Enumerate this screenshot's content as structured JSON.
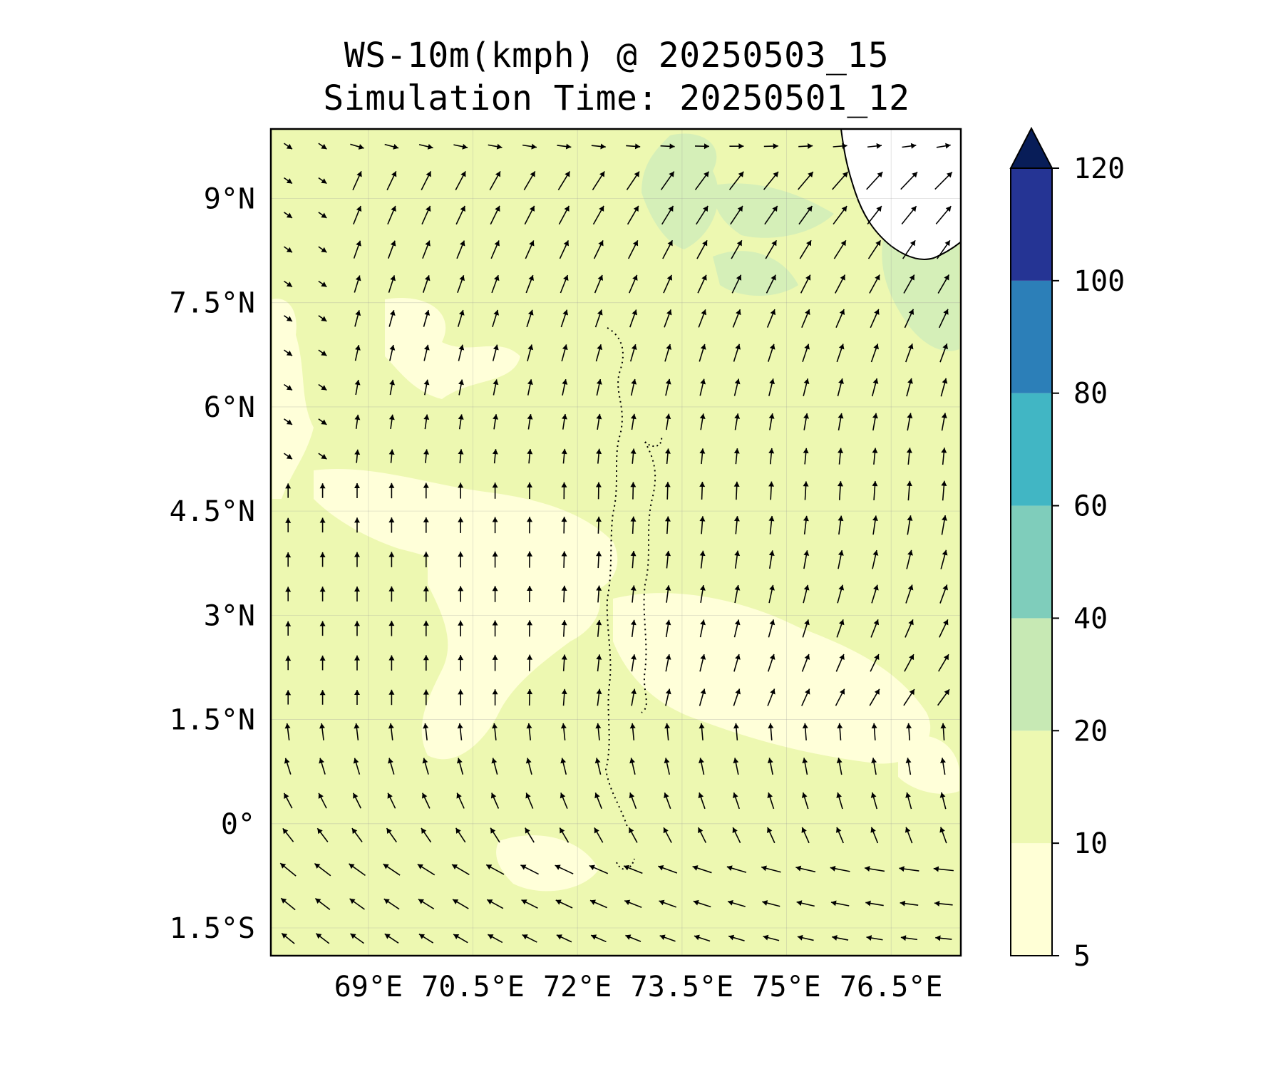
{
  "title": {
    "line1": "WS-10m(kmph) @ 20250503_15",
    "line2": "Simulation Time: 20250501_12"
  },
  "map": {
    "lon_range": [
      67.6,
      77.5
    ],
    "lat_range": [
      -1.9,
      10.0
    ],
    "lat_ticks": [
      {
        "value": 9,
        "label": "9°N"
      },
      {
        "value": 7.5,
        "label": "7.5°N"
      },
      {
        "value": 6,
        "label": "6°N"
      },
      {
        "value": 4.5,
        "label": "4.5°N"
      },
      {
        "value": 3,
        "label": "3°N"
      },
      {
        "value": 1.5,
        "label": "1.5°N"
      },
      {
        "value": 0,
        "label": "0°"
      },
      {
        "value": -1.5,
        "label": "1.5°S"
      }
    ],
    "lon_ticks": [
      {
        "value": 69,
        "label": "69°E"
      },
      {
        "value": 70.5,
        "label": "70.5°E"
      },
      {
        "value": 72,
        "label": "72°E"
      },
      {
        "value": 73.5,
        "label": "73.5°E"
      },
      {
        "value": 75,
        "label": "75°E"
      },
      {
        "value": 76.5,
        "label": "76.5°E"
      }
    ],
    "vector_field": "10 m wind direction arrows, northward south of 5°N, turning east to northeast in the north, westward near the equator and the southern edge"
  },
  "colorbar": {
    "levels": [
      5,
      10,
      20,
      40,
      60,
      80,
      100,
      120
    ],
    "tick_labels": [
      "5",
      "10",
      "20",
      "40",
      "60",
      "80",
      "100",
      "120"
    ],
    "colors": [
      "#ffffd6",
      "#edf8b1",
      "#c7e9b4",
      "#7fcdbb",
      "#41b6c4",
      "#2c7fb8",
      "#253494",
      "#081d58"
    ],
    "extend": "max"
  },
  "colors": {
    "field_base": "#edf8b1",
    "field_low": "#ffffd9",
    "field_mid": "#d5efb8",
    "land": "#ffffff",
    "arrow": "#000000"
  }
}
